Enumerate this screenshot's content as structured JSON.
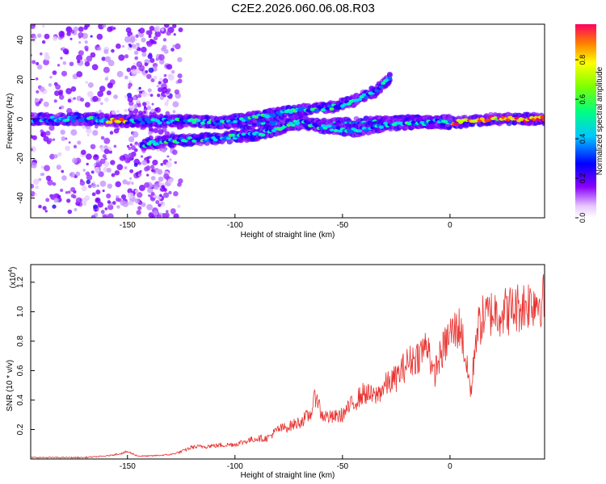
{
  "title": "C2E2.2026.060.06.08.R03",
  "chart_data": [
    {
      "type": "heatmap",
      "xlabel": "Height of straight line (km)",
      "ylabel": "Frequency (Hz)",
      "xlim": [
        -195,
        44
      ],
      "ylim": [
        -50,
        48
      ],
      "xticks": [
        -150,
        -100,
        -50,
        0
      ],
      "yticks": [
        40,
        20,
        0,
        -20,
        -40
      ],
      "colorbar": {
        "label": "Normalized spectral amplitude",
        "range": [
          0.0,
          0.98
        ],
        "ticks": [
          0.0,
          0.2,
          0.4,
          0.6,
          0.8
        ]
      },
      "tracks": [
        {
          "name": "",
          "points": [
            [
              -195,
              0
            ],
            [
              -165,
              0
            ],
            [
              -155,
              -1
            ],
            [
              -140,
              -1
            ],
            [
              -120,
              -1
            ],
            [
              -100,
              -2
            ],
            [
              -80,
              -2
            ],
            [
              -60,
              -3
            ],
            [
              -40,
              -2
            ],
            [
              -20,
              -1
            ],
            [
              0,
              -2
            ],
            [
              10,
              -1
            ],
            [
              20,
              0
            ],
            [
              44,
              0
            ]
          ]
        },
        {
          "name": "",
          "points": [
            [
              -143,
              -13
            ],
            [
              -130,
              -11
            ],
            [
              -110,
              -10
            ],
            [
              -90,
              -8
            ],
            [
              -80,
              -5
            ],
            [
              -70,
              -1
            ],
            [
              -60,
              -4
            ],
            [
              -45,
              -6
            ],
            [
              -30,
              -3
            ],
            [
              -15,
              -2
            ],
            [
              0,
              -1
            ]
          ]
        },
        {
          "name": "",
          "points": [
            [
              -110,
              -2
            ],
            [
              -95,
              0
            ],
            [
              -85,
              2
            ],
            [
              -75,
              4
            ],
            [
              -65,
              5
            ],
            [
              -55,
              6
            ],
            [
              -45,
              9
            ],
            [
              -35,
              14
            ],
            [
              -28,
              21
            ]
          ]
        }
      ]
    },
    {
      "type": "line",
      "xlabel": "Height of straight line (km)",
      "ylabel": "SNR (10 * v/v)",
      "yscale_label": "(x10",
      "yscale_exp": "4",
      "xlim": [
        -195,
        44
      ],
      "ylim": [
        0.0,
        1.32
      ],
      "xticks": [
        -150,
        -100,
        -50,
        0
      ],
      "yticks": [
        0.2,
        0.4,
        0.6,
        0.8,
        1.0,
        1.2
      ],
      "series": [
        {
          "name": "",
          "color": "#e8322f",
          "x": [
            -195,
            -180,
            -170,
            -160,
            -152,
            -150,
            -145,
            -140,
            -130,
            -125,
            -120,
            -110,
            -100,
            -95,
            -90,
            -85,
            -80,
            -75,
            -70,
            -65,
            -62,
            -60,
            -55,
            -50,
            -45,
            -40,
            -35,
            -30,
            -25,
            -20,
            -15,
            -12,
            -10,
            -8,
            -5,
            0,
            5,
            8,
            10,
            12,
            15,
            20,
            25,
            30,
            35,
            40,
            44
          ],
          "y": [
            0.01,
            0.01,
            0.01,
            0.02,
            0.04,
            0.05,
            0.02,
            0.02,
            0.03,
            0.05,
            0.08,
            0.09,
            0.1,
            0.12,
            0.14,
            0.14,
            0.2,
            0.22,
            0.25,
            0.3,
            0.45,
            0.3,
            0.28,
            0.3,
            0.38,
            0.45,
            0.42,
            0.5,
            0.55,
            0.65,
            0.7,
            0.75,
            0.8,
            0.55,
            0.68,
            0.85,
            0.9,
            0.6,
            0.45,
            0.85,
            0.95,
            1.0,
            1.0,
            1.02,
            1.05,
            1.08,
            1.08
          ]
        }
      ]
    }
  ]
}
